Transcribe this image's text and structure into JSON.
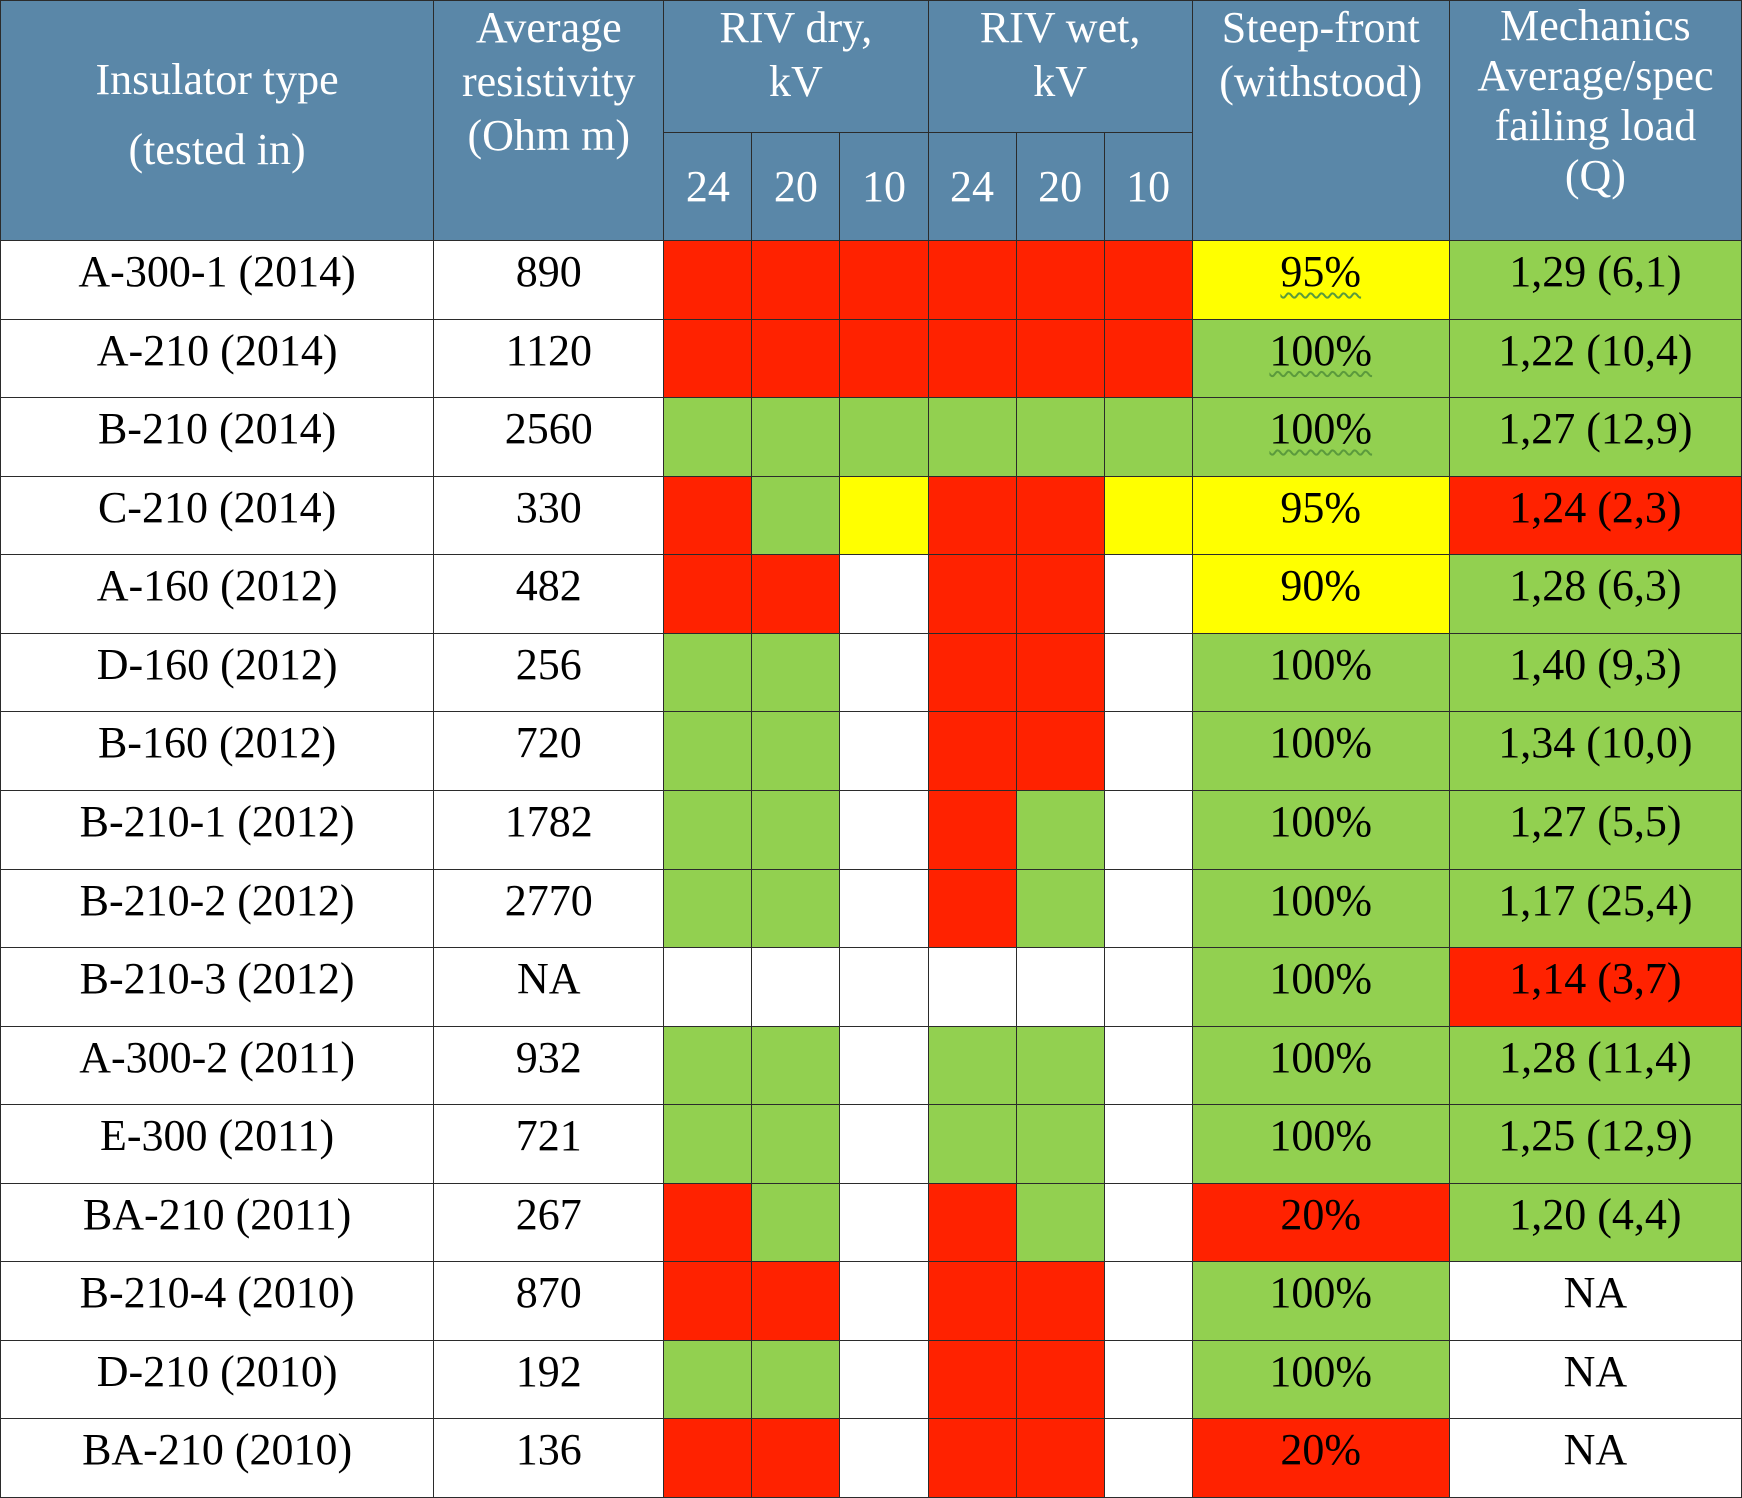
{
  "colors": {
    "header_bg": "#5a87a8",
    "header_text": "#ffffff",
    "red": "#ff2200",
    "green": "#92d050",
    "yellow": "#ffff00",
    "white": "#ffffff",
    "grid_line": "#2b2b2b"
  },
  "headers": {
    "insulator_type": "Insulator type",
    "tested_in": "(tested in)",
    "avg_resistivity": [
      "Average",
      "resistivity",
      "(Ohm m)"
    ],
    "riv_dry": [
      "RIV dry,",
      "kV"
    ],
    "riv_wet": [
      "RIV wet,",
      "kV"
    ],
    "riv_levels": [
      "24",
      "20",
      "10"
    ],
    "steep_front": [
      "Steep-front",
      "(withstood)"
    ],
    "mechanics": [
      "Mechanics",
      "Average/spec",
      "failing load",
      "(Q)"
    ]
  },
  "rows": [
    {
      "type": "A-300-1 (2014)",
      "res": "890",
      "dry": [
        "red",
        "red",
        "red"
      ],
      "wet": [
        "red",
        "red",
        "red"
      ],
      "steep": {
        "text": "95%",
        "color": "yellow",
        "wavy": true
      },
      "mech": {
        "text": "1,29 (6,1)",
        "color": "green"
      }
    },
    {
      "type": "A-210 (2014)",
      "res": "1120",
      "dry": [
        "red",
        "red",
        "red"
      ],
      "wet": [
        "red",
        "red",
        "red"
      ],
      "steep": {
        "text": "100%",
        "color": "green",
        "wavy": true
      },
      "mech": {
        "text": "1,22 (10,4)",
        "color": "green"
      }
    },
    {
      "type": "B-210 (2014)",
      "res": "2560",
      "dry": [
        "green",
        "green",
        "green"
      ],
      "wet": [
        "green",
        "green",
        "green"
      ],
      "steep": {
        "text": "100%",
        "color": "green",
        "wavy": true
      },
      "mech": {
        "text": "1,27 (12,9)",
        "color": "green"
      }
    },
    {
      "type": "C-210 (2014)",
      "res": "330",
      "dry": [
        "red",
        "green",
        "yellow"
      ],
      "wet": [
        "red",
        "red",
        "yellow"
      ],
      "steep": {
        "text": "95%",
        "color": "yellow",
        "wavy": false
      },
      "mech": {
        "text": "1,24 (2,3)",
        "color": "red"
      }
    },
    {
      "type": "A-160 (2012)",
      "res": "482",
      "dry": [
        "red",
        "red",
        "white"
      ],
      "wet": [
        "red",
        "red",
        "white"
      ],
      "steep": {
        "text": "90%",
        "color": "yellow",
        "wavy": false
      },
      "mech": {
        "text": "1,28 (6,3)",
        "color": "green"
      }
    },
    {
      "type": "D-160 (2012)",
      "res": "256",
      "dry": [
        "green",
        "green",
        "white"
      ],
      "wet": [
        "red",
        "red",
        "white"
      ],
      "steep": {
        "text": "100%",
        "color": "green",
        "wavy": false
      },
      "mech": {
        "text": "1,40 (9,3)",
        "color": "green"
      }
    },
    {
      "type": "B-160 (2012)",
      "res": "720",
      "dry": [
        "green",
        "green",
        "white"
      ],
      "wet": [
        "red",
        "red",
        "white"
      ],
      "steep": {
        "text": "100%",
        "color": "green",
        "wavy": false
      },
      "mech": {
        "text": "1,34 (10,0)",
        "color": "green"
      }
    },
    {
      "type": "B-210-1 (2012)",
      "res": "1782",
      "dry": [
        "green",
        "green",
        "white"
      ],
      "wet": [
        "red",
        "green",
        "white"
      ],
      "steep": {
        "text": "100%",
        "color": "green",
        "wavy": false
      },
      "mech": {
        "text": "1,27 (5,5)",
        "color": "green"
      }
    },
    {
      "type": "B-210-2 (2012)",
      "res": "2770",
      "dry": [
        "green",
        "green",
        "white"
      ],
      "wet": [
        "red",
        "green",
        "white"
      ],
      "steep": {
        "text": "100%",
        "color": "green",
        "wavy": false
      },
      "mech": {
        "text": "1,17 (25,4)",
        "color": "green"
      }
    },
    {
      "type": "B-210-3 (2012)",
      "res": "NA",
      "dry": [
        "white",
        "white",
        "white"
      ],
      "wet": [
        "white",
        "white",
        "white"
      ],
      "steep": {
        "text": "100%",
        "color": "green",
        "wavy": false
      },
      "mech": {
        "text": "1,14 (3,7)",
        "color": "red"
      }
    },
    {
      "type": "A-300-2 (2011)",
      "res": "932",
      "dry": [
        "green",
        "green",
        "white"
      ],
      "wet": [
        "green",
        "green",
        "white"
      ],
      "steep": {
        "text": "100%",
        "color": "green",
        "wavy": false
      },
      "mech": {
        "text": "1,28 (11,4)",
        "color": "green"
      }
    },
    {
      "type": "E-300 (2011)",
      "res": "721",
      "dry": [
        "green",
        "green",
        "white"
      ],
      "wet": [
        "green",
        "green",
        "white"
      ],
      "steep": {
        "text": "100%",
        "color": "green",
        "wavy": false
      },
      "mech": {
        "text": "1,25 (12,9)",
        "color": "green"
      }
    },
    {
      "type": "BA-210 (2011)",
      "res": "267",
      "dry": [
        "red",
        "green",
        "white"
      ],
      "wet": [
        "red",
        "green",
        "white"
      ],
      "steep": {
        "text": "20%",
        "color": "red",
        "wavy": false
      },
      "mech": {
        "text": "1,20 (4,4)",
        "color": "green"
      }
    },
    {
      "type": "B-210-4 (2010)",
      "res": "870",
      "dry": [
        "red",
        "red",
        "white"
      ],
      "wet": [
        "red",
        "red",
        "white"
      ],
      "steep": {
        "text": "100%",
        "color": "green",
        "wavy": false
      },
      "mech": {
        "text": "NA",
        "color": "white"
      }
    },
    {
      "type": "D-210 (2010)",
      "res": "192",
      "dry": [
        "green",
        "green",
        "white"
      ],
      "wet": [
        "red",
        "red",
        "white"
      ],
      "steep": {
        "text": "100%",
        "color": "green",
        "wavy": false
      },
      "mech": {
        "text": "NA",
        "color": "white"
      }
    },
    {
      "type": "BA-210 (2010)",
      "res": "136",
      "dry": [
        "red",
        "red",
        "white"
      ],
      "wet": [
        "red",
        "red",
        "white"
      ],
      "steep": {
        "text": "20%",
        "color": "red",
        "wavy": false
      },
      "mech": {
        "text": "NA",
        "color": "white"
      }
    }
  ]
}
